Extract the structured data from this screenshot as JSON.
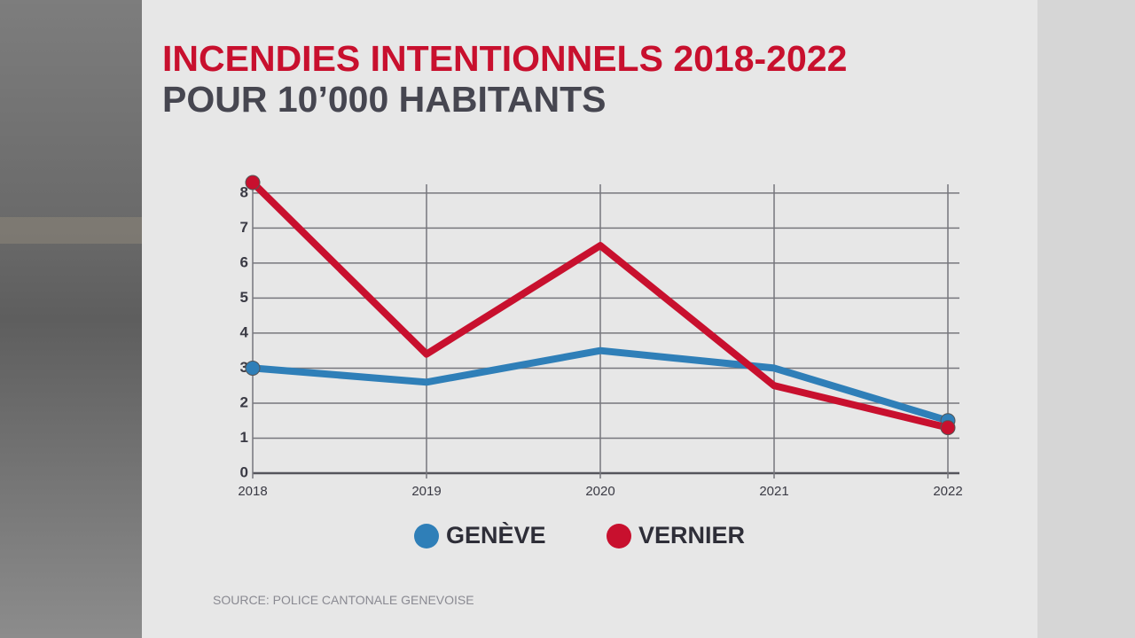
{
  "chart_data": {
    "type": "line",
    "title": "INCENDIES INTENTIONNELS 2018-2022",
    "subtitle": "POUR 10’000 HABITANTS",
    "x": [
      2018,
      2019,
      2020,
      2021,
      2022
    ],
    "xlim": [
      2018,
      2022
    ],
    "xticks": [
      2018,
      2019,
      2020,
      2021,
      2022
    ],
    "ylim": [
      0,
      8.3
    ],
    "yticks": [
      0,
      1,
      2,
      3,
      4,
      5,
      6,
      7,
      8
    ],
    "grid": true,
    "series": [
      {
        "name": "GENÈVE",
        "color": "#2f7fb8",
        "values": [
          3.0,
          2.6,
          3.5,
          3.0,
          1.5
        ]
      },
      {
        "name": "VERNIER",
        "color": "#c8102e",
        "values": [
          8.3,
          3.4,
          6.5,
          2.5,
          1.3
        ]
      }
    ],
    "source": "SOURCE: POLICE CANTONALE GENEVOISE"
  }
}
